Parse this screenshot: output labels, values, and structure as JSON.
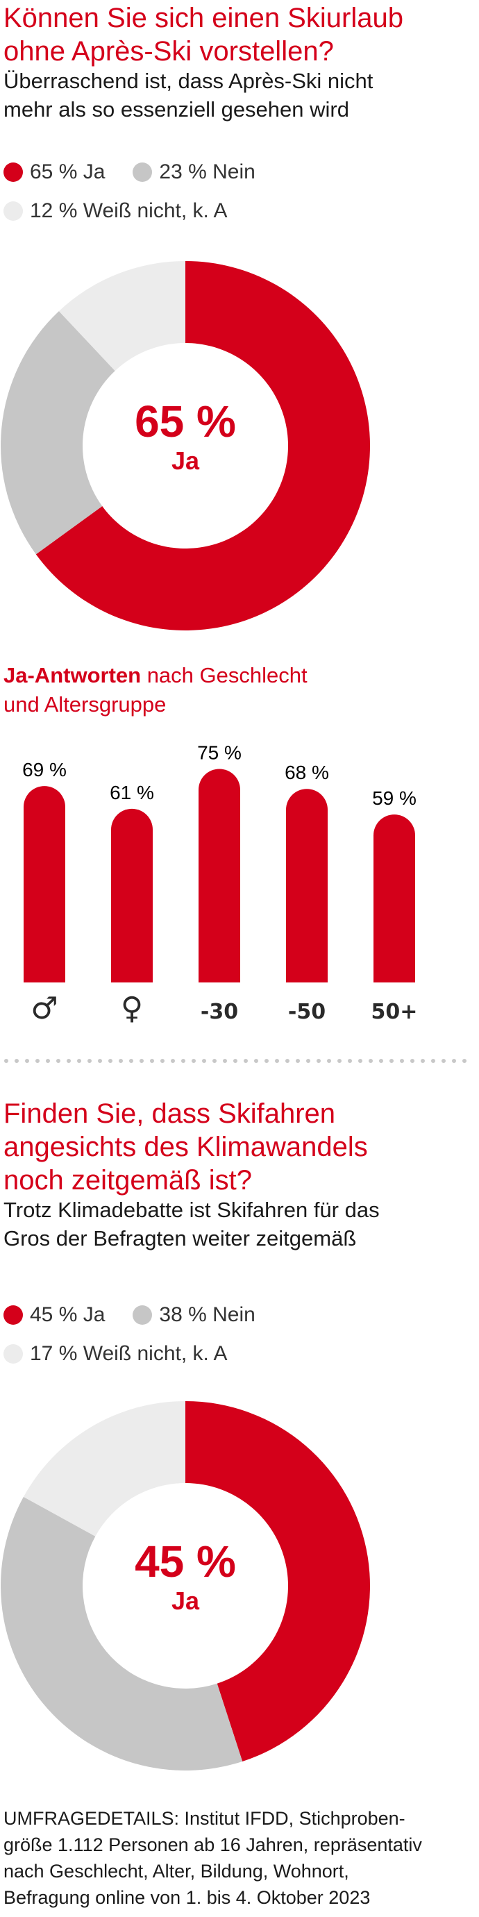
{
  "colors": {
    "ja": "#d4001a",
    "nein": "#c6c6c6",
    "weiss": "#ececec"
  },
  "chart1": {
    "title_line1": "Können Sie sich einen Skiurlaub",
    "title_line2": "ohne Après-Ski vorstellen?",
    "subtitle_line1": "Überraschend ist, dass Après-Ski nicht",
    "subtitle_line2": "mehr als so essenziell gesehen wird",
    "legend": [
      "65 % Ja",
      "23 % Nein",
      "12 % Weiß nicht, k. A"
    ],
    "center_value": "65 %",
    "center_label": "Ja"
  },
  "bars": {
    "title_bold": "Ja-Antworten",
    "title_rest": " nach Geschlecht",
    "title_line2": "und Altersgruppe"
  },
  "chart3": {
    "title_line1": "Finden Sie, dass Skifahren",
    "title_line2": "angesichts des Klimawandels",
    "title_line3": "noch zeitgemäß ist?",
    "subtitle_line1": "Trotz Klimadebatte ist Skifahren für das",
    "subtitle_line2": "Gros der Befragten weiter zeitgemäß",
    "legend": [
      "45 % Ja",
      "38 % Nein",
      "17 % Weiß nicht, k. A"
    ],
    "center_value": "45 %",
    "center_label": "Ja"
  },
  "footnote": {
    "line1": "UMFRAGEDETAILS: Institut IFDD, Stichproben-",
    "line2": "größe 1.112 Personen ab 16 Jahren, repräsentativ",
    "line3": "nach Geschlecht, Alter, Bildung, Wohnort,",
    "line4": "Befragung online von 1. bis 4. Oktober 2023"
  },
  "chart_data": [
    {
      "type": "pie",
      "title": "Können Sie sich einen Skiurlaub ohne Après-Ski vorstellen?",
      "categories": [
        "Ja",
        "Nein",
        "Weiß nicht, k. A"
      ],
      "values": [
        65,
        23,
        12
      ],
      "unit": "%"
    },
    {
      "type": "bar",
      "title": "Ja-Antworten nach Geschlecht und Altersgruppe",
      "categories": [
        "♂",
        "♀",
        "-30",
        "-50",
        "50+"
      ],
      "values": [
        69,
        61,
        75,
        68,
        59
      ],
      "value_labels": [
        "69 %",
        "61 %",
        "75 %",
        "68 %",
        "59 %"
      ],
      "unit": "%"
    },
    {
      "type": "pie",
      "title": "Finden Sie, dass Skifahren angesichts des Klimawandels noch zeitgemäß ist?",
      "categories": [
        "Ja",
        "Nein",
        "Weiß nicht, k. A"
      ],
      "values": [
        45,
        38,
        17
      ],
      "unit": "%"
    }
  ]
}
